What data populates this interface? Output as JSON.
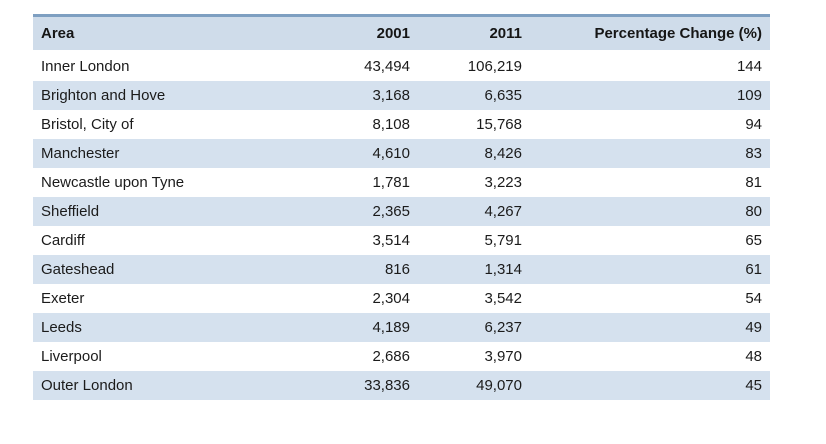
{
  "table": {
    "columns": [
      {
        "key": "area",
        "label": "Area",
        "align": "left"
      },
      {
        "key": "y2001",
        "label": "2001",
        "align": "right"
      },
      {
        "key": "y2011",
        "label": "2011",
        "align": "right"
      },
      {
        "key": "pct",
        "label": "Percentage Change (%)",
        "align": "right"
      }
    ],
    "rows": [
      {
        "area": "Inner London",
        "y2001": "43,494",
        "y2011": "106,219",
        "pct": "144"
      },
      {
        "area": "Brighton and Hove",
        "y2001": "3,168",
        "y2011": "6,635",
        "pct": "109"
      },
      {
        "area": "Bristol, City of",
        "y2001": "8,108",
        "y2011": "15,768",
        "pct": "94"
      },
      {
        "area": "Manchester",
        "y2001": "4,610",
        "y2011": "8,426",
        "pct": "83"
      },
      {
        "area": "Newcastle upon Tyne",
        "y2001": "1,781",
        "y2011": "3,223",
        "pct": "81"
      },
      {
        "area": "Sheffield",
        "y2001": "2,365",
        "y2011": "4,267",
        "pct": "80"
      },
      {
        "area": "Cardiff",
        "y2001": "3,514",
        "y2011": "5,791",
        "pct": "65"
      },
      {
        "area": "Gateshead",
        "y2001": "816",
        "y2011": "1,314",
        "pct": "61"
      },
      {
        "area": "Exeter",
        "y2001": "2,304",
        "y2011": "3,542",
        "pct": "54"
      },
      {
        "area": "Leeds",
        "y2001": "4,189",
        "y2011": "6,237",
        "pct": "49"
      },
      {
        "area": "Liverpool",
        "y2001": "2,686",
        "y2011": "3,970",
        "pct": "48"
      },
      {
        "area": "Outer London",
        "y2001": "33,836",
        "y2011": "49,070",
        "pct": "45"
      }
    ]
  },
  "colors": {
    "header_bg": "#cfdcea",
    "stripe_bg": "#d5e1ee",
    "top_border": "#7e9fc1",
    "text": "#1b1b1b"
  },
  "chart_data": {
    "type": "table",
    "columns": [
      "Area",
      "2001",
      "2011",
      "Percentage Change (%)"
    ],
    "rows": [
      [
        "Inner London",
        43494,
        106219,
        144
      ],
      [
        "Brighton and Hove",
        3168,
        6635,
        109
      ],
      [
        "Bristol, City of",
        8108,
        15768,
        94
      ],
      [
        "Manchester",
        4610,
        8426,
        83
      ],
      [
        "Newcastle upon Tyne",
        1781,
        3223,
        81
      ],
      [
        "Sheffield",
        2365,
        4267,
        80
      ],
      [
        "Cardiff",
        3514,
        5791,
        65
      ],
      [
        "Gateshead",
        816,
        1314,
        61
      ],
      [
        "Exeter",
        2304,
        3542,
        54
      ],
      [
        "Leeds",
        4189,
        6237,
        49
      ],
      [
        "Liverpool",
        2686,
        3970,
        48
      ],
      [
        "Outer London",
        33836,
        49070,
        45
      ]
    ],
    "layout_hints": {
      "striped": true,
      "stripe_start_row": 2,
      "header_background": "#cfdcea",
      "numeric_columns_right_aligned": true
    }
  }
}
